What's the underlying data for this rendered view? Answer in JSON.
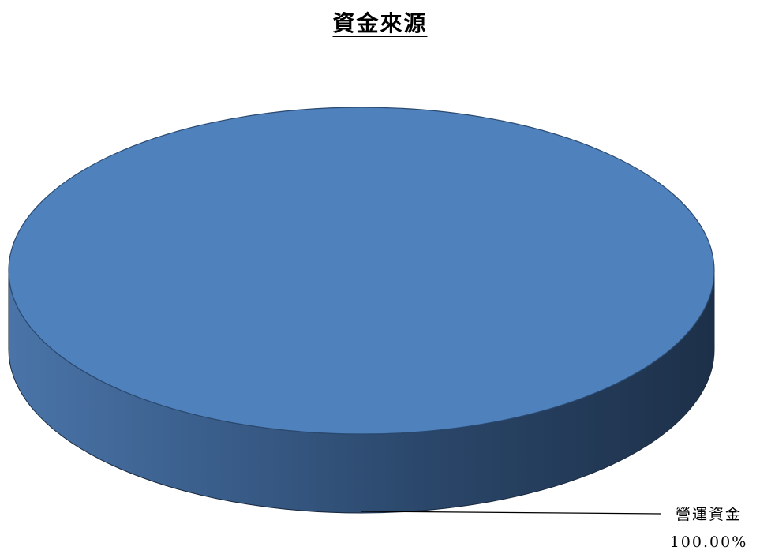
{
  "chart_data": {
    "type": "pie",
    "style": "3d",
    "title": "資金來源",
    "slices": [
      {
        "label": "營運資金",
        "value": 100.0,
        "percent_label": "100.00%",
        "color": "#4F81BD"
      }
    ],
    "legend": "none",
    "data_labels": "outside-bottom-right"
  }
}
